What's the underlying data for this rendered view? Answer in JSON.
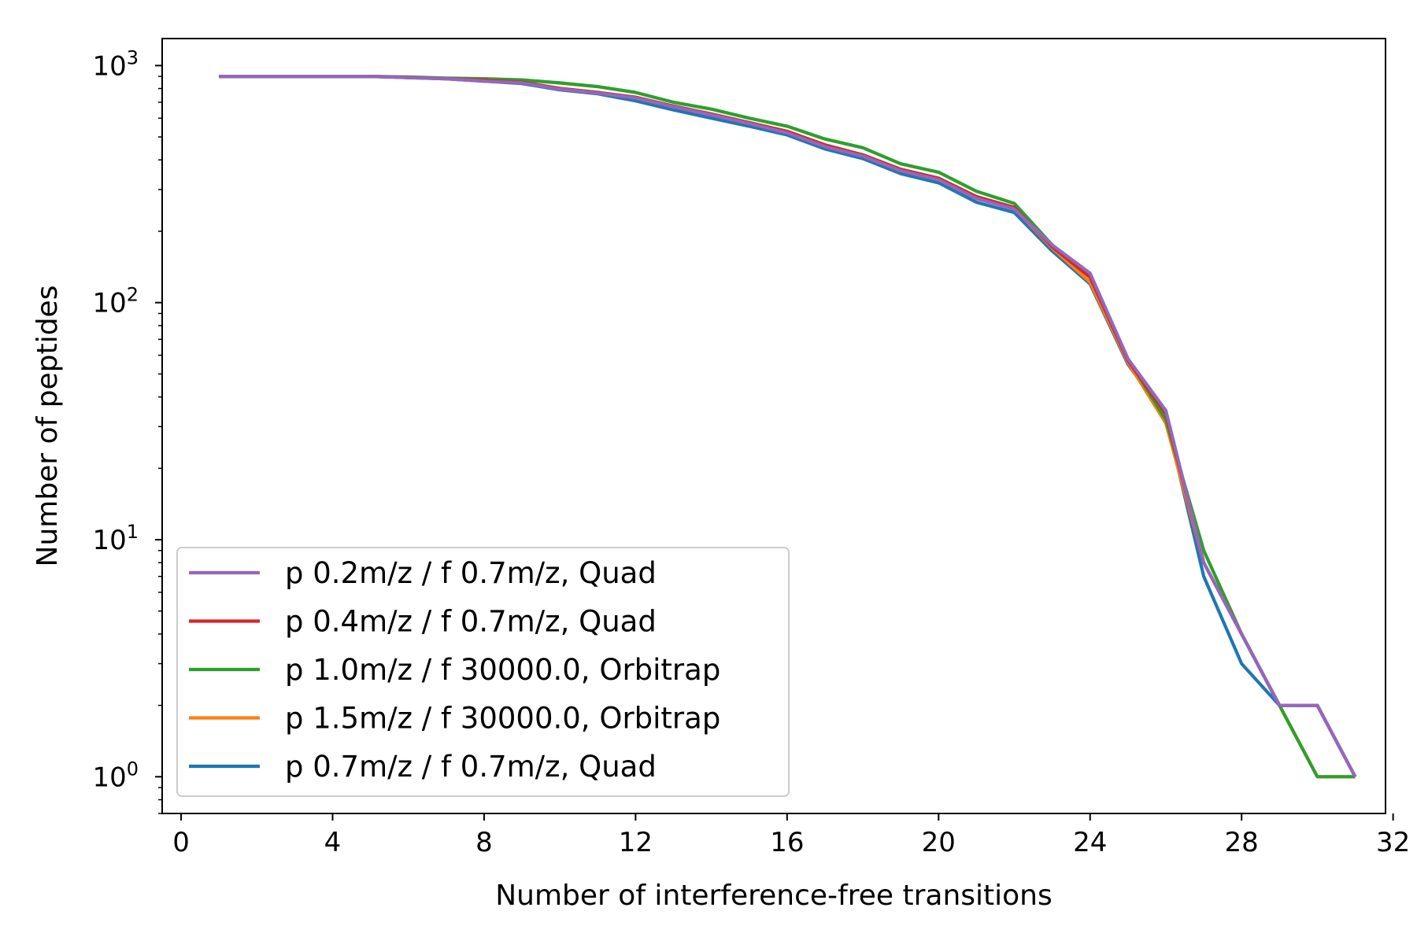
{
  "chart_data": {
    "type": "line",
    "title": "",
    "xlabel": "Number of interference-free transitions",
    "ylabel": "Number of peptides",
    "xlim": [
      -0.5,
      31.8
    ],
    "ylim": [
      0.7,
      1300
    ],
    "yscale": "log",
    "xticks": [
      0,
      4,
      8,
      12,
      16,
      20,
      24,
      28,
      32
    ],
    "xtick_labels": [
      "0",
      "4",
      "8",
      "12",
      "16",
      "20",
      "24",
      "28",
      "32"
    ],
    "yticks": [
      1,
      10,
      100,
      1000
    ],
    "ytick_labels": [
      {
        "base": "10",
        "exp": "0"
      },
      {
        "base": "10",
        "exp": "1"
      },
      {
        "base": "10",
        "exp": "2"
      },
      {
        "base": "10",
        "exp": "3"
      }
    ],
    "grid": false,
    "legend_position": "lower-left",
    "x": [
      1,
      2,
      3,
      4,
      5,
      6,
      7,
      8,
      9,
      10,
      11,
      12,
      13,
      14,
      15,
      16,
      17,
      18,
      19,
      20,
      21,
      22,
      23,
      24,
      25,
      26,
      27,
      28,
      29,
      30,
      31
    ],
    "series": [
      {
        "name": "p 0.7m/z / f 0.7m/z, Quad",
        "color": "#1f77b4",
        "values": [
          900,
          900,
          900,
          900,
          900,
          890,
          880,
          860,
          840,
          790,
          760,
          710,
          650,
          600,
          555,
          510,
          445,
          405,
          350,
          320,
          265,
          240,
          165,
          120,
          55,
          33,
          7,
          3,
          2,
          2,
          1
        ]
      },
      {
        "name": "p 1.5m/z / f 30000.0, Orbitrap",
        "color": "#ff7f0e",
        "values": [
          900,
          900,
          900,
          900,
          900,
          890,
          880,
          865,
          850,
          800,
          770,
          730,
          670,
          620,
          570,
          525,
          460,
          415,
          360,
          330,
          275,
          250,
          170,
          122,
          56,
          31,
          8,
          4,
          2,
          1,
          1
        ]
      },
      {
        "name": "p 1.0m/z / f 30000.0, Orbitrap",
        "color": "#2ca02c",
        "values": [
          900,
          900,
          900,
          900,
          900,
          895,
          885,
          880,
          870,
          845,
          815,
          770,
          700,
          655,
          600,
          555,
          490,
          450,
          385,
          355,
          295,
          262,
          175,
          130,
          58,
          32,
          9,
          4,
          2,
          1,
          1
        ]
      },
      {
        "name": "p 0.4m/z / f 0.7m/z, Quad",
        "color": "#d62728",
        "values": [
          900,
          900,
          900,
          900,
          900,
          892,
          882,
          868,
          850,
          800,
          770,
          735,
          675,
          625,
          575,
          528,
          463,
          420,
          365,
          335,
          280,
          252,
          172,
          128,
          57,
          34,
          8,
          4,
          2,
          2,
          1
        ]
      },
      {
        "name": "p 0.2m/z / f 0.7m/z, Quad",
        "color": "#9467bd",
        "values": [
          900,
          900,
          900,
          900,
          900,
          890,
          880,
          860,
          845,
          795,
          765,
          730,
          670,
          620,
          570,
          520,
          455,
          415,
          360,
          330,
          275,
          248,
          175,
          133,
          58,
          35,
          8,
          4,
          2,
          2,
          1
        ]
      }
    ],
    "legend_order": [
      "p 0.2m/z / f 0.7m/z, Quad",
      "p 0.4m/z / f 0.7m/z, Quad",
      "p 1.0m/z / f 30000.0, Orbitrap",
      "p 1.5m/z / f 30000.0, Orbitrap",
      "p 0.7m/z / f 0.7m/z, Quad"
    ]
  }
}
